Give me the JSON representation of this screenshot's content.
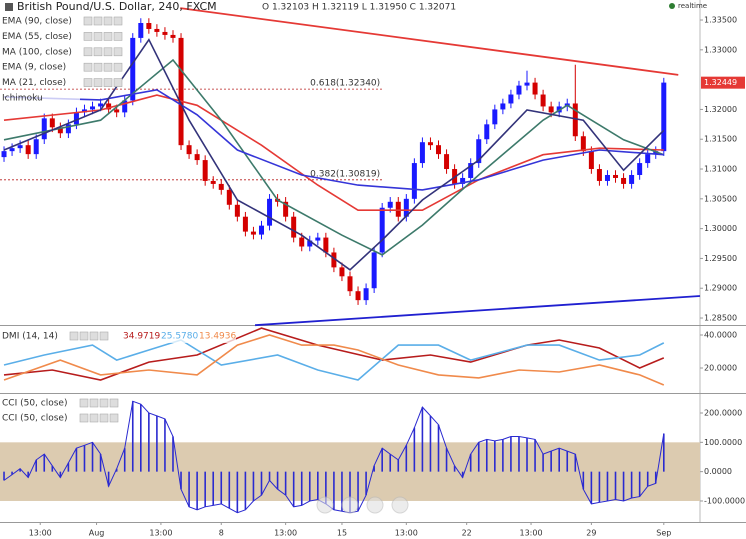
{
  "header": {
    "title": "British Pound/U.S. Dollar, 240, FXCM",
    "ohlc": "O 1.32103 H 1.32119 L 1.31950 C 1.32071",
    "status": "realtime"
  },
  "chart_data": [
    {
      "type": "candlestick",
      "xlim": [
        -0.5,
        86.5
      ],
      "ylim": [
        1.28383,
        1.33836
      ],
      "up_color": "#1a1aff",
      "down_color": "#d40000",
      "open": [
        1.312,
        1.313,
        1.3135,
        1.314,
        1.3125,
        1.315,
        1.3185,
        1.317,
        1.316,
        1.3175,
        1.3195,
        1.32,
        1.3205,
        1.321,
        1.32,
        1.3195,
        1.3215,
        1.332,
        1.3345,
        1.3335,
        1.333,
        1.3325,
        1.332,
        1.314,
        1.3125,
        1.3115,
        1.308,
        1.3075,
        1.3065,
        1.304,
        1.302,
        1.2995,
        1.299,
        1.3005,
        1.305,
        1.3045,
        1.302,
        1.2985,
        1.297,
        1.298,
        1.2985,
        1.296,
        1.2935,
        1.292,
        1.2895,
        1.288,
        1.29,
        1.296,
        1.3035,
        1.3045,
        1.302,
        1.305,
        1.311,
        1.3145,
        1.314,
        1.3125,
        1.31,
        1.3075,
        1.3085,
        1.311,
        1.315,
        1.3175,
        1.32,
        1.321,
        1.3225,
        1.324,
        1.3245,
        1.3225,
        1.3205,
        1.3195,
        1.3205,
        1.321,
        1.3155,
        1.313,
        1.31,
        1.308,
        1.309,
        1.3085,
        1.3075,
        1.309,
        1.311,
        1.3125,
        1.313
      ],
      "high": [
        1.3138,
        1.3143,
        1.3148,
        1.3148,
        1.3158,
        1.3193,
        1.3193,
        1.3178,
        1.3183,
        1.3203,
        1.3208,
        1.3213,
        1.3218,
        1.3218,
        1.3208,
        1.3223,
        1.3328,
        1.3353,
        1.3353,
        1.3343,
        1.3338,
        1.3333,
        1.3328,
        1.3148,
        1.3133,
        1.3123,
        1.3088,
        1.3083,
        1.3073,
        1.3048,
        1.3028,
        1.3003,
        1.3013,
        1.3058,
        1.3058,
        1.3053,
        1.3028,
        1.2993,
        1.2988,
        1.2993,
        1.2993,
        1.2968,
        1.2943,
        1.2928,
        1.2903,
        1.2908,
        1.2968,
        1.3043,
        1.3053,
        1.3053,
        1.3058,
        1.3118,
        1.3153,
        1.3153,
        1.3148,
        1.3133,
        1.3108,
        1.3093,
        1.3118,
        1.3158,
        1.3183,
        1.3208,
        1.3218,
        1.3233,
        1.3248,
        1.3265,
        1.3253,
        1.3233,
        1.3213,
        1.3213,
        1.3218,
        1.3275,
        1.3163,
        1.3138,
        1.3108,
        1.3098,
        1.3098,
        1.3093,
        1.3098,
        1.3118,
        1.3133,
        1.3138,
        1.3253
      ],
      "low": [
        1.3112,
        1.3122,
        1.3127,
        1.3117,
        1.3117,
        1.3142,
        1.3162,
        1.3152,
        1.3152,
        1.3167,
        1.3187,
        1.3192,
        1.3197,
        1.3192,
        1.3187,
        1.3187,
        1.3207,
        1.3312,
        1.3327,
        1.3322,
        1.3317,
        1.3312,
        1.3132,
        1.3117,
        1.3107,
        1.3072,
        1.3067,
        1.3057,
        1.3032,
        1.3012,
        1.2987,
        1.2982,
        1.2982,
        1.2997,
        1.3037,
        1.3012,
        1.2977,
        1.2962,
        1.2962,
        1.2972,
        1.2952,
        1.2927,
        1.2912,
        1.2887,
        1.2872,
        1.2872,
        1.2892,
        1.2952,
        1.3027,
        1.3012,
        1.3012,
        1.3042,
        1.3102,
        1.3132,
        1.3117,
        1.3092,
        1.3067,
        1.3067,
        1.3077,
        1.3102,
        1.3142,
        1.3167,
        1.3192,
        1.3202,
        1.3217,
        1.3232,
        1.3217,
        1.3197,
        1.3187,
        1.3187,
        1.3197,
        1.3147,
        1.3122,
        1.3092,
        1.3072,
        1.3072,
        1.3077,
        1.3067,
        1.3067,
        1.3082,
        1.3102,
        1.3117,
        1.3122
      ],
      "close": [
        1.313,
        1.3135,
        1.314,
        1.3125,
        1.315,
        1.3185,
        1.317,
        1.316,
        1.3175,
        1.3195,
        1.32,
        1.3205,
        1.321,
        1.32,
        1.3195,
        1.3215,
        1.332,
        1.3345,
        1.3335,
        1.333,
        1.3325,
        1.332,
        1.314,
        1.3125,
        1.3115,
        1.308,
        1.3075,
        1.3065,
        1.304,
        1.302,
        1.2995,
        1.299,
        1.3005,
        1.305,
        1.3045,
        1.302,
        1.2985,
        1.297,
        1.298,
        1.2985,
        1.296,
        1.2935,
        1.292,
        1.2895,
        1.288,
        1.29,
        1.296,
        1.3035,
        1.3045,
        1.302,
        1.305,
        1.311,
        1.3145,
        1.314,
        1.3125,
        1.31,
        1.3075,
        1.3085,
        1.311,
        1.315,
        1.3175,
        1.32,
        1.321,
        1.3225,
        1.324,
        1.3245,
        1.3225,
        1.3205,
        1.3195,
        1.3205,
        1.321,
        1.3155,
        1.313,
        1.31,
        1.308,
        1.309,
        1.3085,
        1.3075,
        1.309,
        1.311,
        1.3125,
        1.313,
        1.3245
      ],
      "series": [
        {
          "name": "EMA (90, close)",
          "color": "#e53935",
          "x": [
            0,
            12,
            19,
            24,
            32,
            39,
            44,
            52,
            59,
            67,
            74,
            82
          ],
          "values": [
            1.3182,
            1.3199,
            1.3224,
            1.3207,
            1.314,
            1.3073,
            1.3031,
            1.3031,
            1.3082,
            1.3124,
            1.3135,
            1.3132
          ]
        },
        {
          "name": "EMA (55, close)",
          "color": "#3d7a6b",
          "x": [
            0,
            12,
            21,
            27,
            34,
            42,
            47,
            52,
            59,
            67,
            70,
            77,
            82
          ],
          "values": [
            1.3149,
            1.3182,
            1.3283,
            1.3182,
            1.3048,
            1.2989,
            1.2956,
            1.3006,
            1.309,
            1.3182,
            1.3207,
            1.3149,
            1.3124
          ]
        },
        {
          "name": "MA (100, close)",
          "color": "#3535d8",
          "x": [
            0,
            12,
            19,
            24,
            29,
            37,
            44,
            52,
            59,
            67,
            74,
            82
          ],
          "values": [
            1.3221,
            1.3216,
            1.3233,
            1.3191,
            1.3132,
            1.309,
            1.3073,
            1.3065,
            1.3082,
            1.3115,
            1.3132,
            1.3124
          ]
        },
        {
          "name": "EMA (9, close)",
          "color": "#33337a",
          "x": [
            0,
            12,
            18,
            23,
            29,
            37,
            43,
            47,
            52,
            59,
            65,
            72,
            77,
            82
          ],
          "values": [
            1.3132,
            1.3199,
            1.3317,
            1.3182,
            1.3048,
            1.2989,
            1.2931,
            1.2981,
            1.3048,
            1.3115,
            1.3199,
            1.3182,
            1.3098,
            1.3165
          ]
        }
      ],
      "legend_extra": [
        "MA (21, close)",
        "Ichimoku"
      ],
      "trendlines": [
        {
          "color": "#e53935",
          "x": [
            21.9,
            83.8
          ],
          "y": [
            1.337,
            1.3258
          ]
        },
        {
          "color": "#2020d0",
          "x": [
            31.2,
            86.5
          ],
          "y": [
            1.2838,
            1.2887
          ]
        }
      ],
      "fib_color": "#b71c1c",
      "fib_xrange": [
        -0.5,
        47
      ],
      "fib_levels": [
        {
          "value": 1.3234,
          "label": "0.618(1.32340)"
        },
        {
          "value": 1.30819,
          "label": "0.382(1.30819)"
        }
      ],
      "last_price": {
        "value": 1.32449,
        "label": "1.32449"
      },
      "last_price_color": "#e53935",
      "yticks": [
        {
          "value": 1.335,
          "label": "1.33500"
        },
        {
          "value": 1.33,
          "label": "1.33000"
        },
        {
          "value": 1.32,
          "label": "1.32000"
        },
        {
          "value": 1.315,
          "label": "1.31500"
        },
        {
          "value": 1.31,
          "label": "1.31000"
        },
        {
          "value": 1.305,
          "label": "1.30500"
        },
        {
          "value": 1.3,
          "label": "1.30000"
        },
        {
          "value": 1.295,
          "label": "1.29500"
        },
        {
          "value": 1.29,
          "label": "1.29000"
        },
        {
          "value": 1.285,
          "label": "1.28500"
        }
      ]
    },
    {
      "type": "line",
      "title": "DMI (14, 14)",
      "xlim": [
        -0.5,
        86.5
      ],
      "ylim": [
        5.45,
        44.85
      ],
      "series": [
        {
          "color": "#b71c1c",
          "readout": "34.9719",
          "x": [
            0,
            6,
            12,
            18,
            24,
            32,
            39,
            47,
            53,
            58,
            65,
            69,
            74,
            79,
            82
          ],
          "values": [
            15.8,
            18.8,
            12.7,
            23.6,
            27.9,
            44.2,
            33.9,
            24.8,
            27.9,
            23.6,
            33.9,
            37.0,
            32.1,
            20.0,
            26.1
          ]
        },
        {
          "color": "#5aaee8",
          "readout": "25.5780",
          "x": [
            0,
            5,
            11,
            14,
            18,
            22,
            27,
            34,
            39,
            44,
            49,
            54,
            58,
            65,
            69,
            74,
            79,
            82
          ],
          "values": [
            21.8,
            27.9,
            33.9,
            24.8,
            30.9,
            37.0,
            21.8,
            27.9,
            18.8,
            12.7,
            33.9,
            33.9,
            24.8,
            33.9,
            33.9,
            24.8,
            27.9,
            35.2
          ]
        },
        {
          "color": "#f08a4b",
          "readout": "13.4936",
          "x": [
            0,
            7,
            12,
            18,
            24,
            29,
            33,
            37,
            41,
            44,
            49,
            54,
            59,
            64,
            69,
            74,
            79,
            82
          ],
          "values": [
            12.7,
            24.8,
            15.8,
            18.8,
            15.8,
            33.9,
            40.0,
            33.9,
            33.9,
            30.9,
            21.8,
            15.8,
            14.0,
            18.8,
            17.6,
            21.8,
            15.8,
            9.7
          ]
        }
      ],
      "yticks": [
        {
          "value": 40,
          "label": "40.0000"
        },
        {
          "value": 20,
          "label": "20.0000"
        }
      ]
    },
    {
      "type": "bar",
      "legend": [
        "CCI (50, close)",
        "CCI (50, close)"
      ],
      "color": "#2a2ad0",
      "xlim": [
        -0.5,
        86.5
      ],
      "ylim": [
        -171.7,
        261.4
      ],
      "band": [
        -100,
        100
      ],
      "band_color": "#dccbb0",
      "values": [
        -30,
        -10,
        10,
        -20,
        40,
        60,
        20,
        -20,
        30,
        80,
        90,
        100,
        60,
        -50,
        10,
        80,
        240,
        230,
        200,
        190,
        180,
        120,
        -60,
        -120,
        -130,
        -120,
        -115,
        -110,
        -125,
        -140,
        -130,
        -100,
        -80,
        -30,
        -60,
        -80,
        -120,
        -115,
        -100,
        -95,
        -110,
        -130,
        -135,
        -140,
        -135,
        -80,
        20,
        80,
        60,
        40,
        90,
        150,
        220,
        190,
        160,
        80,
        20,
        -20,
        60,
        100,
        110,
        105,
        110,
        120,
        120,
        115,
        110,
        60,
        70,
        80,
        70,
        60,
        -60,
        -110,
        -105,
        -100,
        -95,
        -100,
        -90,
        -85,
        -50,
        -40,
        130
      ],
      "yticks": [
        {
          "value": 200,
          "label": "200.0000"
        },
        {
          "value": 100,
          "label": "100.0000"
        },
        {
          "value": 0,
          "label": "0.0000"
        },
        {
          "value": -100,
          "label": "-100.0000"
        }
      ],
      "xticks": [
        {
          "value": 4.5,
          "label": "13:00"
        },
        {
          "value": 11.5,
          "label": "Aug"
        },
        {
          "value": 19.5,
          "label": "13:00"
        },
        {
          "value": 27,
          "label": "8"
        },
        {
          "value": 35,
          "label": "13:00"
        },
        {
          "value": 42,
          "label": "15"
        },
        {
          "value": 50,
          "label": "13:00"
        },
        {
          "value": 57.5,
          "label": "22"
        },
        {
          "value": 65.5,
          "label": "13:00"
        },
        {
          "value": 73,
          "label": "29"
        },
        {
          "value": 82,
          "label": "Sep"
        }
      ]
    }
  ]
}
